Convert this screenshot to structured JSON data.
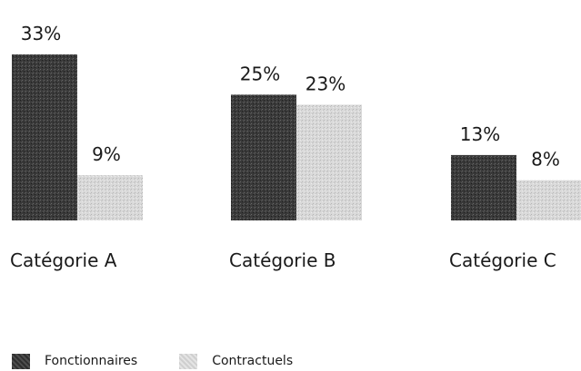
{
  "chart_data": {
    "type": "bar",
    "categories": [
      "Catégorie A",
      "Catégorie B",
      "Catégorie C"
    ],
    "series": [
      {
        "name": "Fonctionnaires",
        "values": [
          33,
          25,
          13
        ],
        "labels": [
          "33%",
          "25%",
          "13%"
        ],
        "color": "#3a3a3a"
      },
      {
        "name": "Contractuels",
        "values": [
          9,
          23,
          8
        ],
        "labels": [
          "9%",
          "23%",
          "8%"
        ],
        "color": "#d6d6d6"
      }
    ],
    "title": "",
    "xlabel": "",
    "ylabel": "",
    "ylim": [
      0,
      33
    ]
  }
}
